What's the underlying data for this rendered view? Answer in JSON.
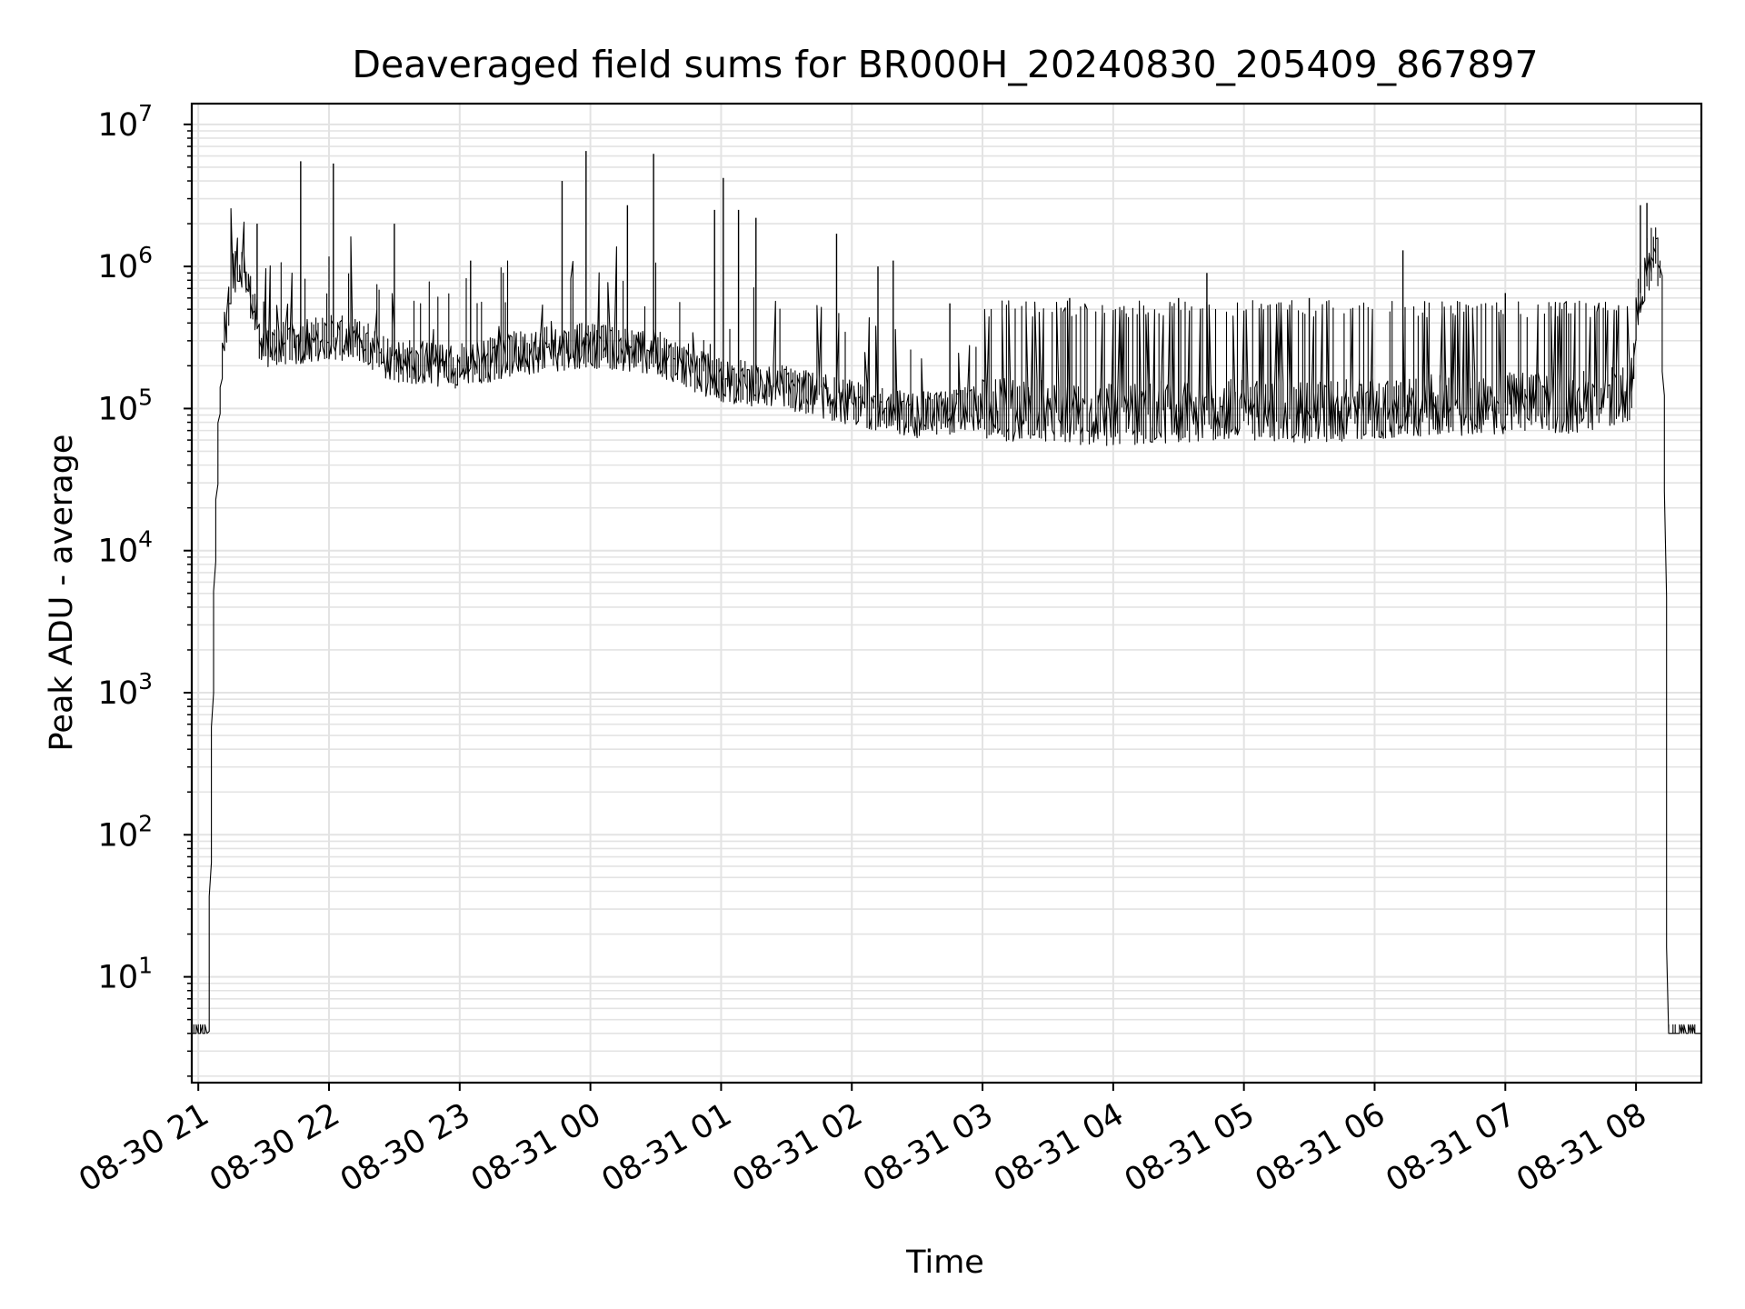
{
  "chart_data": {
    "type": "line",
    "title": "Deaveraged field sums for BR000H_20240830_205409_867897",
    "xlabel": "Time",
    "ylabel": "Peak ADU - average",
    "yscale": "log",
    "ylim": [
      1.8,
      14000000
    ],
    "xlim": [
      "2024-08-30 20:57",
      "2024-08-31 08:30"
    ],
    "grid": true,
    "x_tick_labels": [
      "08-30 21",
      "08-30 22",
      "08-30 23",
      "08-31 00",
      "08-31 01",
      "08-31 02",
      "08-31 03",
      "08-31 04",
      "08-31 05",
      "08-31 06",
      "08-31 07",
      "08-31 08"
    ],
    "x_tick_times": [
      "2024-08-30 21:00",
      "2024-08-30 22:00",
      "2024-08-30 23:00",
      "2024-08-31 00:00",
      "2024-08-31 01:00",
      "2024-08-31 02:00",
      "2024-08-31 03:00",
      "2024-08-31 04:00",
      "2024-08-31 05:00",
      "2024-08-31 06:00",
      "2024-08-31 07:00",
      "2024-08-31 08:00"
    ],
    "y_tick_values": [
      10,
      100,
      1000,
      10000,
      100000,
      1000000,
      10000000
    ],
    "y_tick_labels": [
      {
        "base": "10",
        "exp": "1"
      },
      {
        "base": "10",
        "exp": "2"
      },
      {
        "base": "10",
        "exp": "3"
      },
      {
        "base": "10",
        "exp": "4"
      },
      {
        "base": "10",
        "exp": "5"
      },
      {
        "base": "10",
        "exp": "6"
      },
      {
        "base": "10",
        "exp": "7"
      }
    ],
    "line_color": "#000000",
    "series": [
      {
        "x": [
          "2024-08-30 20:57",
          "2024-08-30 21:05",
          "2024-08-30 21:06",
          "2024-08-30 21:08",
          "2024-08-30 21:10",
          "2024-08-30 21:12",
          "2024-08-30 21:15",
          "2024-08-30 21:18",
          "2024-08-30 21:21",
          "2024-08-30 21:25",
          "2024-08-30 21:30",
          "2024-08-30 21:35",
          "2024-08-30 21:50",
          "2024-08-30 22:00",
          "2024-08-30 22:15",
          "2024-08-30 22:30",
          "2024-08-30 23:00",
          "2024-08-30 23:30",
          "2024-08-31 00:00",
          "2024-08-31 00:30",
          "2024-08-31 01:00",
          "2024-08-31 01:30",
          "2024-08-31 02:00",
          "2024-08-31 02:30",
          "2024-08-31 03:00",
          "2024-08-31 03:30",
          "2024-08-31 04:00",
          "2024-08-31 04:30",
          "2024-08-31 05:00",
          "2024-08-31 05:30",
          "2024-08-31 06:00",
          "2024-08-31 06:30",
          "2024-08-31 07:00",
          "2024-08-31 07:30",
          "2024-08-31 07:58",
          "2024-08-31 08:02",
          "2024-08-31 08:06",
          "2024-08-31 08:09",
          "2024-08-31 08:12",
          "2024-08-31 08:14",
          "2024-08-31 08:15",
          "2024-08-31 08:30"
        ],
        "y": [
          4,
          4,
          50,
          8000,
          80000,
          300000,
          650000,
          1100000,
          1000000,
          600000,
          250000,
          280000,
          300000,
          320000,
          300000,
          220000,
          200000,
          250000,
          280000,
          250000,
          160000,
          140000,
          110000,
          90000,
          100000,
          95000,
          90000,
          95000,
          100000,
          95000,
          100000,
          105000,
          110000,
          110000,
          130000,
          650000,
          1100000,
          1300000,
          900000,
          25000,
          4,
          4
        ]
      }
    ],
    "spikes": [
      {
        "x": "2024-08-30 21:27",
        "y": 2000000
      },
      {
        "x": "2024-08-30 21:47",
        "y": 5500000
      },
      {
        "x": "2024-08-30 22:02",
        "y": 5300000
      },
      {
        "x": "2024-08-30 22:30",
        "y": 2000000
      },
      {
        "x": "2024-08-30 23:05",
        "y": 1100000
      },
      {
        "x": "2024-08-30 23:47",
        "y": 4000000
      },
      {
        "x": "2024-08-30 23:58",
        "y": 6500000
      },
      {
        "x": "2024-08-31 00:17",
        "y": 2700000
      },
      {
        "x": "2024-08-31 00:29",
        "y": 6200000
      },
      {
        "x": "2024-08-31 00:57",
        "y": 2500000
      },
      {
        "x": "2024-08-31 01:01",
        "y": 4200000
      },
      {
        "x": "2024-08-31 01:08",
        "y": 2500000
      },
      {
        "x": "2024-08-31 01:16",
        "y": 2200000
      },
      {
        "x": "2024-08-31 01:53",
        "y": 1700000
      },
      {
        "x": "2024-08-31 02:12",
        "y": 1000000
      },
      {
        "x": "2024-08-31 02:19",
        "y": 1100000
      },
      {
        "x": "2024-08-31 02:45",
        "y": 550000
      },
      {
        "x": "2024-08-31 03:40",
        "y": 600000
      },
      {
        "x": "2024-08-31 04:30",
        "y": 600000
      },
      {
        "x": "2024-08-31 04:43",
        "y": 900000
      },
      {
        "x": "2024-08-31 05:30",
        "y": 600000
      },
      {
        "x": "2024-08-31 06:13",
        "y": 1300000
      },
      {
        "x": "2024-08-31 07:00",
        "y": 650000
      },
      {
        "x": "2024-08-31 08:02",
        "y": 2700000
      },
      {
        "x": "2024-08-31 08:05",
        "y": 2800000
      }
    ]
  }
}
